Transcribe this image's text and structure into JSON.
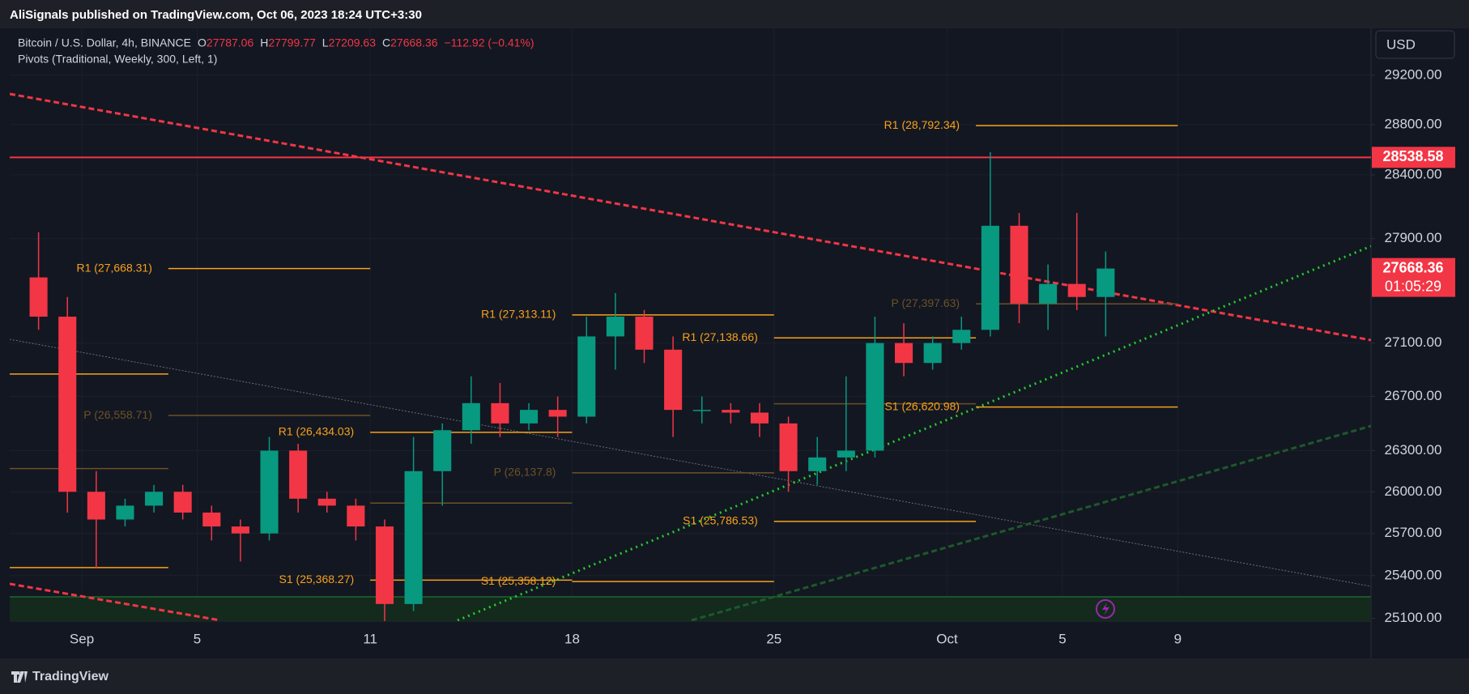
{
  "header": {
    "publisher": "AliSignals published on TradingView.com, Oct 06, 2023 18:24 UTC+3:30",
    "symbol": "Bitcoin / U.S. Dollar, 4h, BINANCE",
    "ohlc": [
      {
        "label": "O",
        "value": "27787.06"
      },
      {
        "label": "H",
        "value": "27799.77"
      },
      {
        "label": "L",
        "value": "27209.63"
      },
      {
        "label": "C",
        "value": "27668.36"
      }
    ],
    "change": "−112.92 (−0.41%)",
    "indicator": "Pivots (Traditional, Weekly, 300, Left, 1)",
    "currency": "USD"
  },
  "footer": {
    "brand": "TradingView"
  },
  "chart_data": {
    "type": "candlestick",
    "log": true,
    "up_color": "#089981",
    "down_color": "#f23645",
    "grid": true,
    "xlim": [
      -1.5,
      45.7
    ],
    "ylim": [
      25080,
      29583
    ],
    "xticks": [
      {
        "value": 1,
        "label": "Sep"
      },
      5,
      11,
      18,
      25,
      {
        "value": 31,
        "label": "Oct"
      },
      {
        "value": 35,
        "label": "5"
      },
      {
        "value": 39,
        "label": "9"
      }
    ],
    "yticks": [
      {
        "value": 29200,
        "label": "29200.00"
      },
      {
        "value": 28800,
        "label": "28800.00"
      },
      {
        "value": 28400,
        "label": "28400.00"
      },
      {
        "value": 27900,
        "label": "27900.00"
      },
      {
        "value": 27100,
        "label": "27100.00"
      },
      {
        "value": 26700,
        "label": "26700.00"
      },
      {
        "value": 26300,
        "label": "26300.00"
      },
      {
        "value": 26000,
        "label": "26000.00"
      },
      {
        "value": 25700,
        "label": "25700.00"
      },
      {
        "value": 25400,
        "label": "25400.00"
      },
      {
        "value": 25100,
        "label": "25100.00"
      }
    ],
    "x": [
      -1,
      0,
      1,
      2,
      3,
      4,
      5,
      6,
      7,
      8,
      9,
      10,
      11,
      12,
      13,
      14,
      15,
      16,
      17,
      18,
      19,
      20,
      21,
      22,
      23,
      24,
      25,
      26,
      27,
      28,
      29,
      30,
      31,
      32,
      33,
      34,
      35,
      36
    ],
    "open": [
      27600,
      27300,
      26000,
      25800,
      25900,
      26000,
      25850,
      25750,
      25700,
      26300,
      25950,
      25900,
      25750,
      25200,
      26150,
      26450,
      26650,
      26500,
      26600,
      26550,
      27150,
      27300,
      27050,
      26600,
      26600,
      26580,
      26500,
      26150,
      26250,
      26300,
      27100,
      26950,
      27100,
      27200,
      28000,
      27400,
      27550,
      27450
    ],
    "high": [
      27950,
      27450,
      26150,
      25950,
      26050,
      26050,
      25900,
      25800,
      26400,
      26350,
      26000,
      25950,
      25800,
      26400,
      26500,
      26850,
      26800,
      26650,
      26700,
      27300,
      27480,
      27350,
      27150,
      26700,
      26650,
      26650,
      26550,
      26400,
      26850,
      27300,
      27250,
      27150,
      27300,
      28580,
      28100,
      27700,
      28100,
      27800
    ],
    "low": [
      27200,
      25850,
      25450,
      25750,
      25850,
      25800,
      25650,
      25500,
      25650,
      25850,
      25850,
      25650,
      25080,
      25150,
      25900,
      26350,
      26400,
      26450,
      26400,
      26500,
      26900,
      26950,
      26400,
      26500,
      26500,
      26400,
      26000,
      26050,
      26150,
      26250,
      26850,
      26900,
      27050,
      27150,
      27250,
      27200,
      27350,
      27150
    ],
    "close": [
      27300,
      26000,
      25800,
      25900,
      26000,
      25850,
      25750,
      25700,
      26300,
      25950,
      25900,
      25750,
      25200,
      26150,
      26450,
      26650,
      26500,
      26600,
      26550,
      27150,
      27300,
      27050,
      26600,
      26600,
      26580,
      26500,
      26150,
      26250,
      26300,
      27100,
      26950,
      27100,
      27200,
      28000,
      27400,
      27550,
      27450,
      27668.36
    ],
    "pivots": [
      {
        "value": 26867,
        "x0": -3,
        "x1": 4,
        "color": "#f7a21b"
      },
      {
        "value": 26169,
        "x0": -3,
        "x1": 4,
        "color": "#6b5226"
      },
      {
        "value": 25457,
        "x0": -3,
        "x1": 4,
        "color": "#f7a21b"
      },
      {
        "label": "R1 (27,668.31)",
        "value": 27668.31,
        "x0": 4,
        "x1": 11,
        "color": "#f7a21b"
      },
      {
        "label": "P (26,558.71)",
        "value": 26558.71,
        "x0": 4,
        "x1": 11,
        "color": "#6b5226"
      },
      {
        "label": "R1 (26,434.03)",
        "value": 26434.03,
        "x0": 11,
        "x1": 18,
        "color": "#f7a21b"
      },
      {
        "value": 25918,
        "x0": 11,
        "x1": 18,
        "color": "#6b5226"
      },
      {
        "label": "S1 (25,368.27)",
        "value": 25368.27,
        "x0": 11,
        "x1": 18,
        "color": "#f7a21b"
      },
      {
        "label": "R1 (27,313.11)",
        "value": 27313.11,
        "x0": 18,
        "x1": 25,
        "color": "#f7a21b"
      },
      {
        "label": "P (26,137.8)",
        "value": 26137.8,
        "x0": 18,
        "x1": 25,
        "color": "#6b5226"
      },
      {
        "label": "S1 (25,358.12)",
        "value": 25358.12,
        "x0": 18,
        "x1": 25,
        "color": "#f7a21b"
      },
      {
        "label": "R1 (27,138.66)",
        "value": 27138.66,
        "x0": 25,
        "x1": 32,
        "color": "#f7a21b"
      },
      {
        "value": 26645,
        "x0": 25,
        "x1": 32,
        "color": "#6b5226"
      },
      {
        "label": "S1 (25,786.53)",
        "value": 25786.53,
        "x0": 25,
        "x1": 32,
        "color": "#f7a21b"
      },
      {
        "label": "R1 (28,792.34)",
        "value": 28792.34,
        "x0": 32,
        "x1": 39,
        "color": "#f7a21b"
      },
      {
        "label": "P (27,397.63)",
        "value": 27397.63,
        "x0": 32,
        "x1": 39,
        "color": "#6b5226"
      },
      {
        "label": "S1 (26,620.98)",
        "value": 26620.98,
        "x0": 32,
        "x1": 39,
        "color": "#f7a21b"
      }
    ],
    "price_lines": [
      {
        "value": 28538.58,
        "color": "#f23645",
        "line": true
      },
      {
        "value": 27668.36,
        "color": "#f23645",
        "line": false,
        "countdown": "01:05:29"
      }
    ]
  }
}
